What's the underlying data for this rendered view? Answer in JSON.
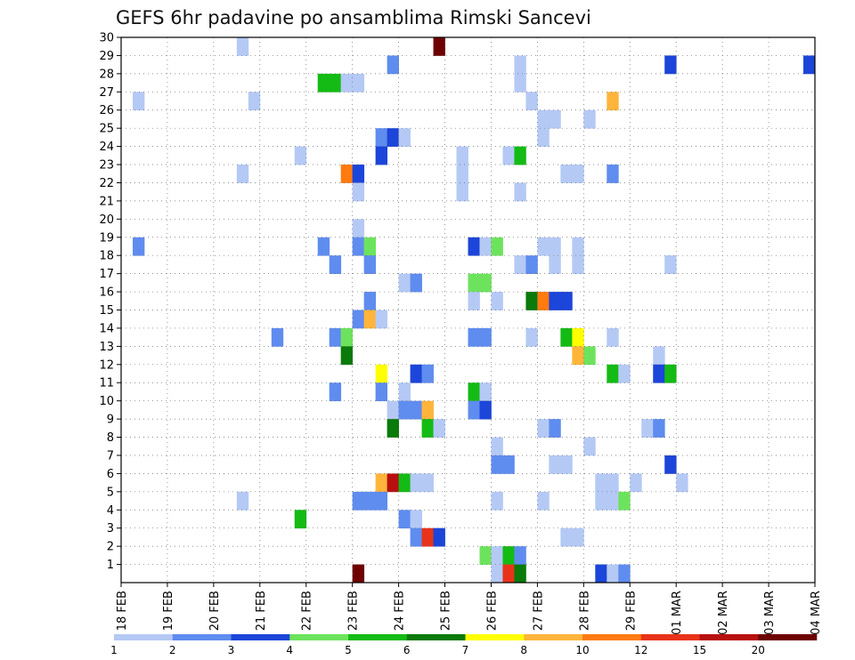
{
  "chart_data": {
    "type": "heatmap",
    "title": "GEFS 6hr padavine po ansamblima Rimski Sancevi",
    "y_ticks": [
      "1",
      "2",
      "3",
      "4",
      "5",
      "6",
      "7",
      "8",
      "9",
      "10",
      "11",
      "12",
      "13",
      "14",
      "15",
      "16",
      "17",
      "18",
      "19",
      "20",
      "21",
      "22",
      "23",
      "24",
      "25",
      "26",
      "27",
      "28",
      "29",
      "30"
    ],
    "ylim": [
      0,
      30
    ],
    "x_ticks": [
      "18 FEB",
      "19 FEB",
      "20 FEB",
      "21 FEB",
      "22 FEB",
      "23 FEB",
      "24 FEB",
      "25 FEB",
      "26 FEB",
      "27 FEB",
      "28 FEB",
      "29 FEB",
      "01 MAR",
      "02 MAR",
      "03 MAR",
      "04 MAR"
    ],
    "xlim": [
      "18 FEB",
      "04 MAR"
    ],
    "x_step": "6 h",
    "grid": true,
    "colorbar": {
      "labels": [
        "1",
        "2",
        "3",
        "4",
        "5",
        "6",
        "7",
        "8",
        "10",
        "12",
        "15",
        "20"
      ],
      "colors": [
        "#b5c9f5",
        "#5f8cef",
        "#1c45d9",
        "#6de35d",
        "#14bb14",
        "#0a7a0a",
        "#ffff00",
        "#ffb53b",
        "#ff7a0f",
        "#e8331a",
        "#b80f0f",
        "#6e0000"
      ]
    },
    "cells": [
      [
        2.5,
        30,
        0
      ],
      [
        6.75,
        30,
        11
      ],
      [
        5.75,
        29,
        1
      ],
      [
        8.5,
        29,
        0
      ],
      [
        11.75,
        29,
        2
      ],
      [
        14.75,
        29,
        2
      ],
      [
        4.25,
        28,
        4
      ],
      [
        4.5,
        28,
        4
      ],
      [
        4.75,
        28,
        0
      ],
      [
        5,
        28,
        0
      ],
      [
        8.5,
        28,
        0
      ],
      [
        0.25,
        27,
        0
      ],
      [
        2.75,
        27,
        0
      ],
      [
        8.75,
        27,
        0
      ],
      [
        10.5,
        27,
        7
      ],
      [
        9,
        26,
        0
      ],
      [
        9.25,
        26,
        0
      ],
      [
        10,
        26,
        0
      ],
      [
        5.5,
        25,
        1
      ],
      [
        5.75,
        25,
        2
      ],
      [
        6,
        25,
        0
      ],
      [
        9,
        25,
        0
      ],
      [
        3.75,
        24,
        0
      ],
      [
        5.5,
        24,
        2
      ],
      [
        7.25,
        24,
        0
      ],
      [
        8.25,
        24,
        0
      ],
      [
        8.5,
        24,
        4
      ],
      [
        2.5,
        23,
        0
      ],
      [
        4.75,
        23,
        8
      ],
      [
        5,
        23,
        2
      ],
      [
        7.25,
        23,
        0
      ],
      [
        9.5,
        23,
        0
      ],
      [
        9.75,
        23,
        0
      ],
      [
        10.5,
        23,
        1
      ],
      [
        5,
        22,
        0
      ],
      [
        7.25,
        22,
        0
      ],
      [
        8.5,
        22,
        0
      ],
      [
        5,
        20,
        0
      ],
      [
        0.25,
        19,
        1
      ],
      [
        4.25,
        19,
        1
      ],
      [
        5,
        19,
        1
      ],
      [
        5.25,
        19,
        3
      ],
      [
        7.5,
        19,
        2
      ],
      [
        7.75,
        19,
        0
      ],
      [
        8,
        19,
        3
      ],
      [
        9,
        19,
        0
      ],
      [
        9.25,
        19,
        0
      ],
      [
        9.75,
        19,
        0
      ],
      [
        4.5,
        18,
        1
      ],
      [
        5.25,
        18,
        1
      ],
      [
        8.5,
        18,
        0
      ],
      [
        8.75,
        18,
        1
      ],
      [
        9.25,
        18,
        0
      ],
      [
        9.75,
        18,
        0
      ],
      [
        11.75,
        18,
        0
      ],
      [
        6,
        17,
        0
      ],
      [
        6.25,
        17,
        1
      ],
      [
        7.5,
        17,
        3
      ],
      [
        7.75,
        17,
        3
      ],
      [
        5.25,
        16,
        1
      ],
      [
        7.5,
        16,
        0
      ],
      [
        8,
        16,
        0
      ],
      [
        8.75,
        16,
        5
      ],
      [
        9,
        16,
        8
      ],
      [
        9.25,
        16,
        2
      ],
      [
        9.5,
        16,
        2
      ],
      [
        5,
        15,
        1
      ],
      [
        5.25,
        15,
        7
      ],
      [
        5.5,
        15,
        0
      ],
      [
        3.25,
        14,
        1
      ],
      [
        4.5,
        14,
        1
      ],
      [
        4.75,
        14,
        3
      ],
      [
        7.5,
        14,
        1
      ],
      [
        7.75,
        14,
        1
      ],
      [
        8.75,
        14,
        0
      ],
      [
        9.5,
        14,
        4
      ],
      [
        9.75,
        14,
        6
      ],
      [
        10.5,
        14,
        0
      ],
      [
        4.75,
        13,
        5
      ],
      [
        9.75,
        13,
        7
      ],
      [
        10,
        13,
        3
      ],
      [
        11.5,
        13,
        0
      ],
      [
        5.5,
        12,
        6
      ],
      [
        6.25,
        12,
        2
      ],
      [
        6.5,
        12,
        1
      ],
      [
        10.5,
        12,
        4
      ],
      [
        10.75,
        12,
        0
      ],
      [
        11.5,
        12,
        2
      ],
      [
        11.75,
        12,
        4
      ],
      [
        4.5,
        11,
        1
      ],
      [
        5.5,
        11,
        1
      ],
      [
        6,
        11,
        0
      ],
      [
        7.5,
        11,
        4
      ],
      [
        7.75,
        11,
        0
      ],
      [
        5.75,
        10,
        0
      ],
      [
        6,
        10,
        1
      ],
      [
        6.25,
        10,
        1
      ],
      [
        6.5,
        10,
        7
      ],
      [
        7.5,
        10,
        1
      ],
      [
        7.75,
        10,
        2
      ],
      [
        5.75,
        9,
        5
      ],
      [
        6.5,
        9,
        4
      ],
      [
        6.75,
        9,
        0
      ],
      [
        9,
        9,
        0
      ],
      [
        9.25,
        9,
        1
      ],
      [
        11.25,
        9,
        0
      ],
      [
        11.5,
        9,
        1
      ],
      [
        8,
        8,
        0
      ],
      [
        10,
        8,
        0
      ],
      [
        8,
        7,
        1
      ],
      [
        8.25,
        7,
        1
      ],
      [
        9.25,
        7,
        0
      ],
      [
        9.5,
        7,
        0
      ],
      [
        11.75,
        7,
        2
      ],
      [
        5.5,
        6,
        7
      ],
      [
        5.75,
        6,
        10
      ],
      [
        6,
        6,
        4
      ],
      [
        6.25,
        6,
        0
      ],
      [
        6.5,
        6,
        0
      ],
      [
        10.25,
        6,
        0
      ],
      [
        10.5,
        6,
        0
      ],
      [
        11,
        6,
        0
      ],
      [
        12,
        6,
        0
      ],
      [
        2.5,
        5,
        0
      ],
      [
        5,
        5,
        1
      ],
      [
        5.25,
        5,
        1
      ],
      [
        5.5,
        5,
        1
      ],
      [
        8,
        5,
        0
      ],
      [
        9,
        5,
        0
      ],
      [
        10.25,
        5,
        0
      ],
      [
        10.5,
        5,
        0
      ],
      [
        10.75,
        5,
        3
      ],
      [
        3.75,
        4,
        4
      ],
      [
        6,
        4,
        1
      ],
      [
        6.25,
        4,
        0
      ],
      [
        6.25,
        3,
        1
      ],
      [
        6.5,
        3,
        9
      ],
      [
        6.75,
        3,
        2
      ],
      [
        9.5,
        3,
        0
      ],
      [
        9.75,
        3,
        0
      ],
      [
        7.75,
        2,
        3
      ],
      [
        8,
        2,
        0
      ],
      [
        8.25,
        2,
        4
      ],
      [
        8.5,
        2,
        1
      ],
      [
        8,
        1,
        0
      ],
      [
        8.25,
        1,
        9
      ],
      [
        8.5,
        1,
        5
      ],
      [
        10.25,
        1,
        2
      ],
      [
        10.5,
        1,
        0
      ],
      [
        10.75,
        1,
        1
      ],
      [
        5,
        1,
        11
      ]
    ]
  }
}
